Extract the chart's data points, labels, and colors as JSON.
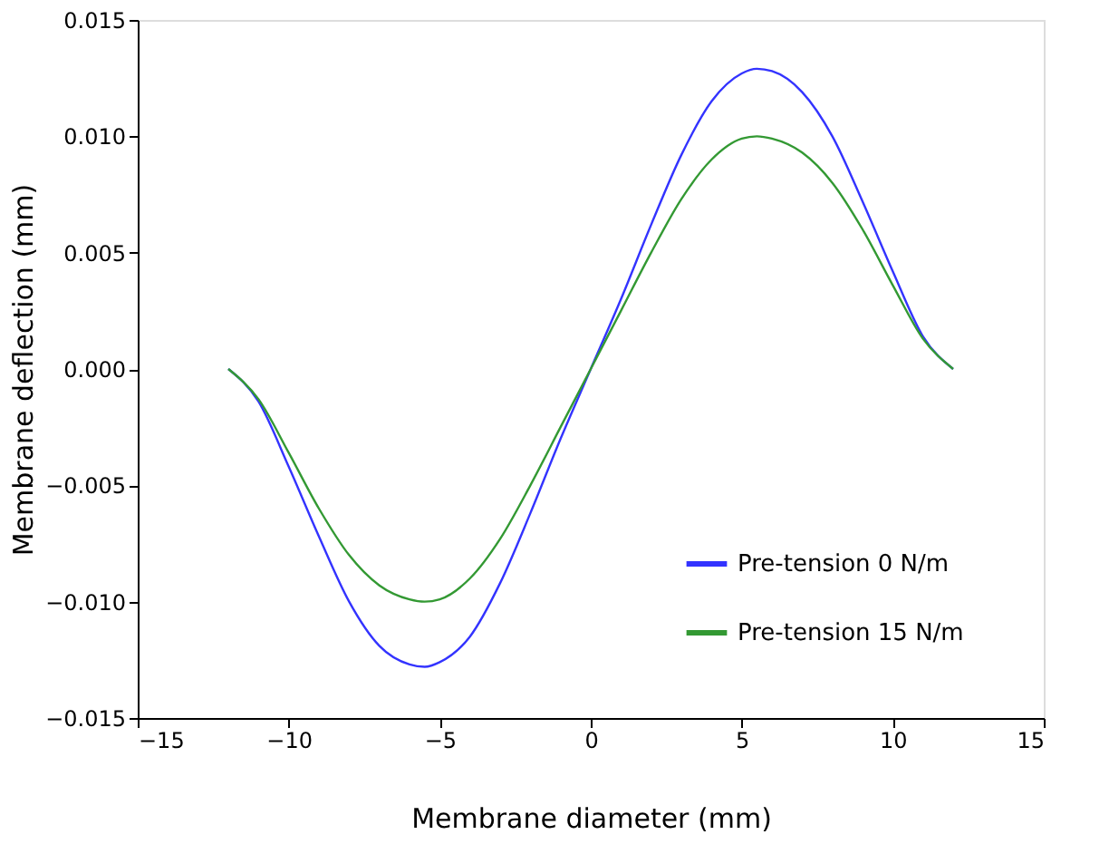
{
  "chart_data": {
    "type": "line",
    "xlabel": "Membrane diameter (mm)",
    "ylabel": "Membrane deflection (mm)",
    "xlim": [
      -15,
      15
    ],
    "xticks": [
      {
        "value": -15,
        "label": "−15"
      },
      {
        "value": -10,
        "label": "−10"
      },
      {
        "value": -5,
        "label": "−5"
      },
      0,
      5,
      10,
      15
    ],
    "ylim": [
      -0.015,
      0.015
    ],
    "yticks": [
      {
        "value": -0.015,
        "label": "−0.015"
      },
      {
        "value": -0.01,
        "label": "−0.010"
      },
      {
        "value": -0.005,
        "label": "−0.005"
      },
      {
        "value": 0,
        "label": "0.000"
      },
      {
        "value": 0.005,
        "label": "0.005"
      },
      {
        "value": 0.01,
        "label": "0.010"
      },
      {
        "value": 0.015,
        "label": "0.015"
      }
    ],
    "grid": false,
    "legend": "bottom right",
    "marker": "none",
    "line_style": "solid",
    "x": [
      -12,
      -11,
      -10,
      -9,
      -8,
      -7,
      -6,
      -5.5,
      -5,
      -4,
      -3,
      -2,
      -1,
      0,
      1,
      2,
      3,
      4,
      5,
      5.5,
      6,
      7,
      8,
      9,
      10,
      11,
      12
    ],
    "series": [
      {
        "name": "Pre-tension  0 N/m",
        "color": "#3333ff",
        "values": [
          0,
          -0.0014,
          -0.0042,
          -0.0072,
          -0.01,
          -0.0119,
          -0.0127,
          -0.0128,
          -0.0126,
          -0.0115,
          -0.0092,
          -0.0062,
          -0.003,
          0,
          0.003,
          0.0062,
          0.0092,
          0.0115,
          0.0127,
          0.0129,
          0.0128,
          0.0119,
          0.01,
          0.0072,
          0.0042,
          0.0014,
          0
        ]
      },
      {
        "name": "Pre-tension  15 N/m",
        "color": "#339933",
        "values": [
          0,
          -0.0013,
          -0.0036,
          -0.006,
          -0.008,
          -0.0093,
          -0.0099,
          -0.01,
          -0.0099,
          -0.009,
          -0.0073,
          -0.005,
          -0.0025,
          0,
          0.0025,
          0.005,
          0.0073,
          0.009,
          0.0099,
          0.01,
          0.0099,
          0.0093,
          0.008,
          0.006,
          0.0036,
          0.0013,
          0
        ]
      }
    ]
  }
}
